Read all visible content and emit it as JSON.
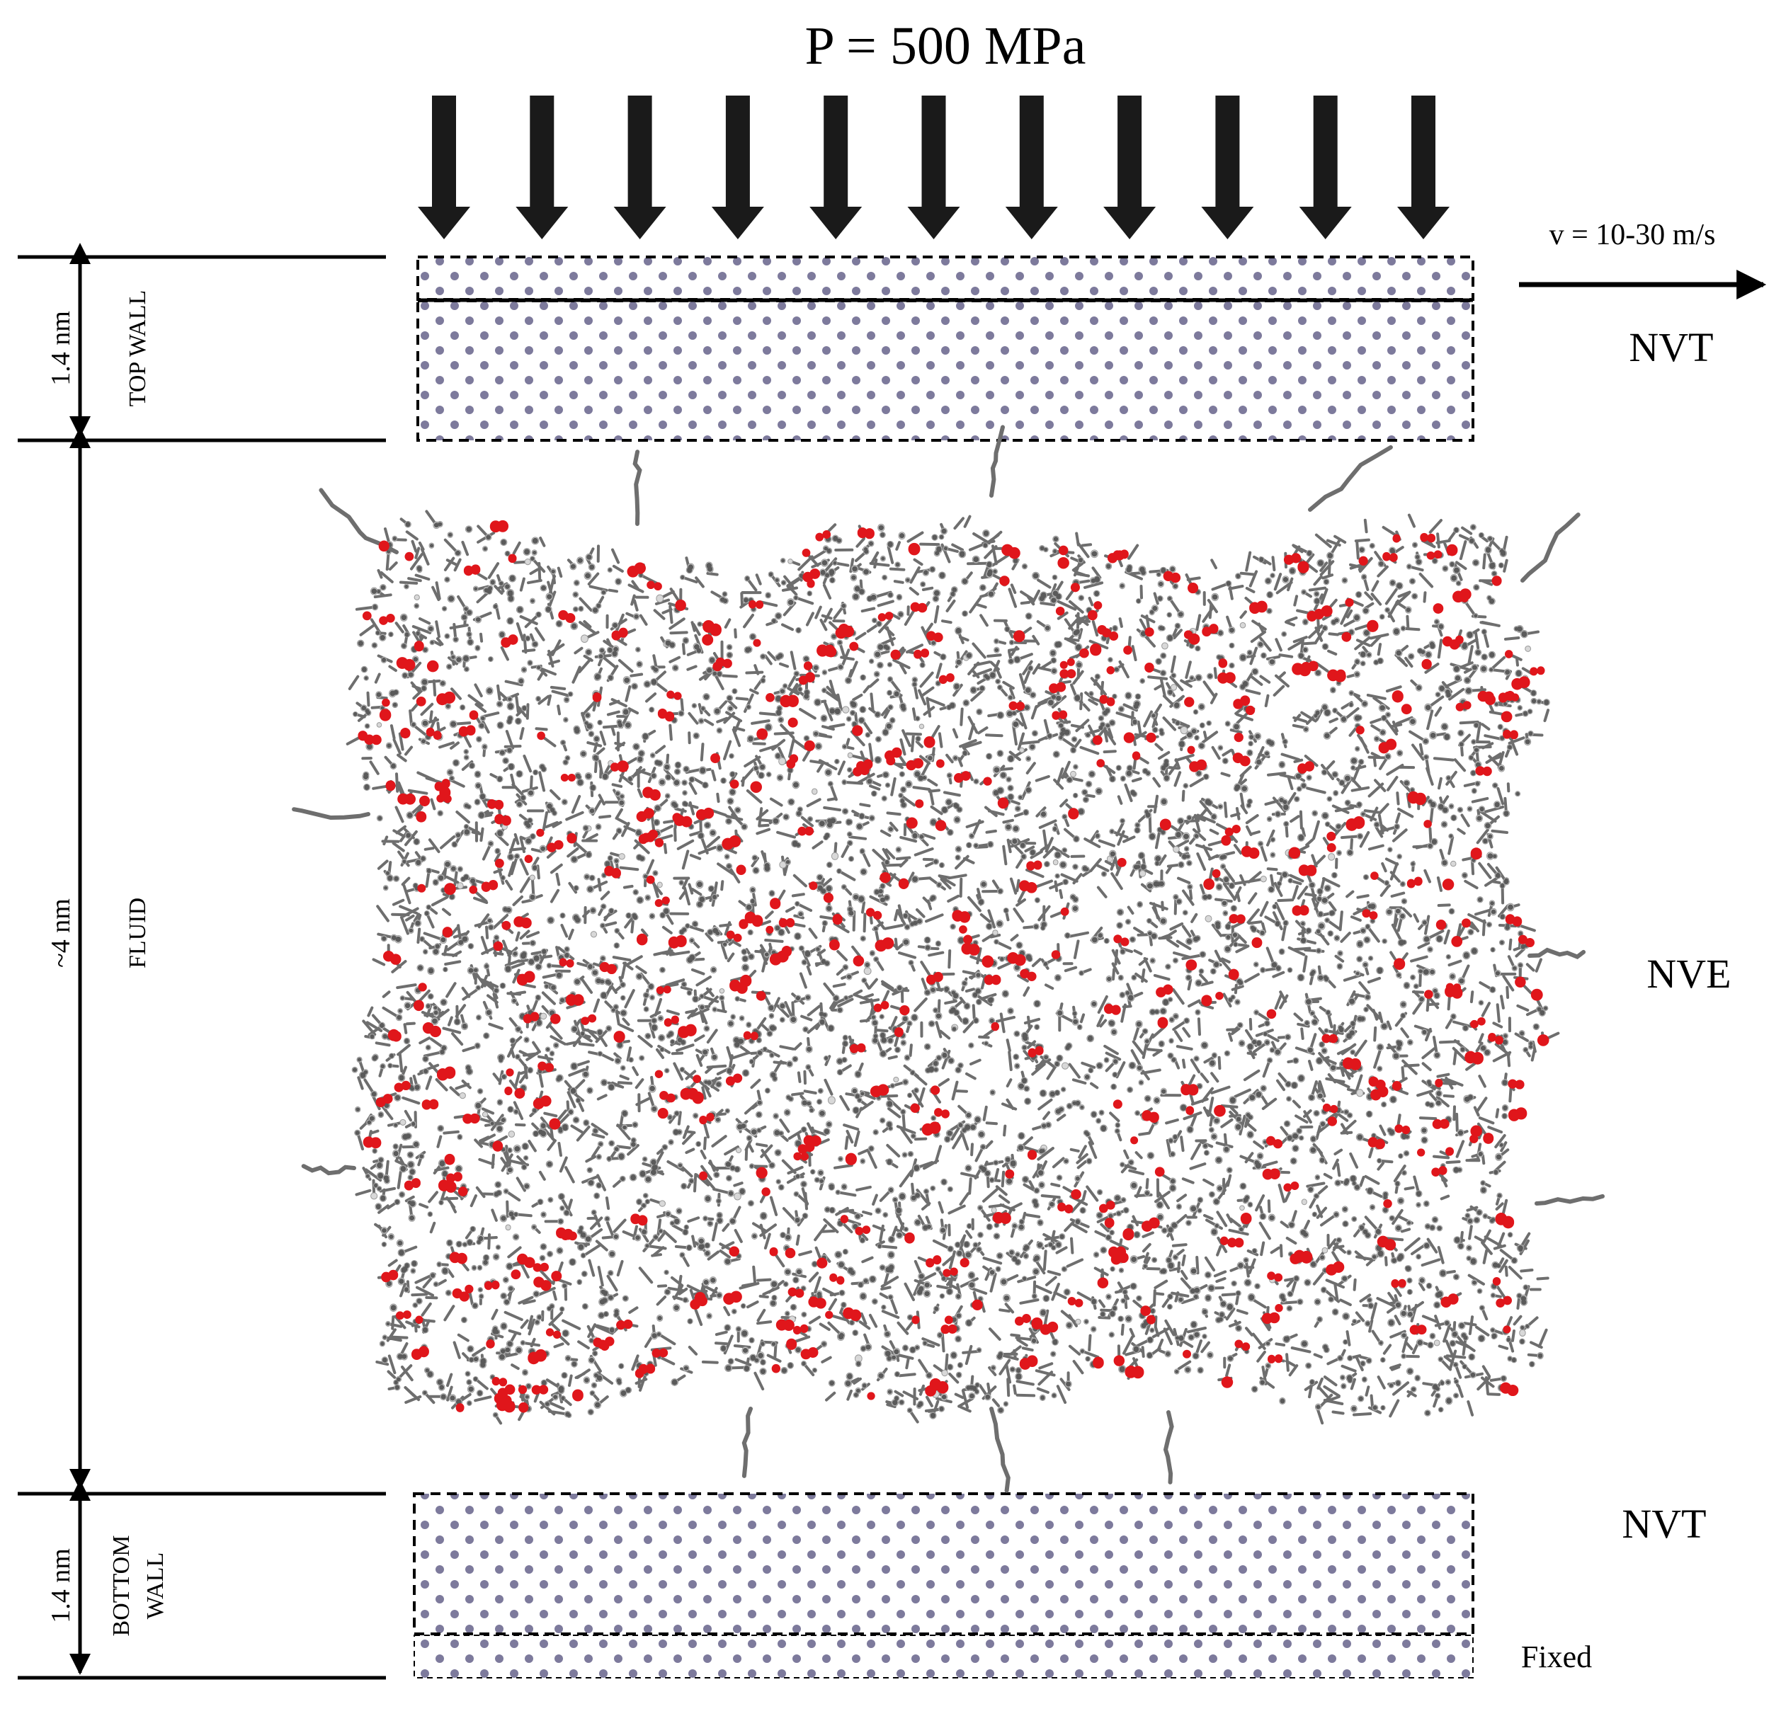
{
  "pressure_label": "P = 500 MPa",
  "velocity_label": "v = 10-30 m/s",
  "regions": {
    "top_wall": {
      "thickness": "1.4 nm",
      "name": "TOP WALL",
      "ensemble": "NVT"
    },
    "fluid": {
      "thickness": "~4 nm",
      "name": "FLUID",
      "ensemble": "NVE"
    },
    "bottom_wall": {
      "thickness": "1.4 nm",
      "name_line1": "BOTTOM",
      "name_line2": "WALL",
      "ensemble": "NVT",
      "fixed_label": "Fixed"
    }
  },
  "pressure_arrow_count": 11,
  "colors": {
    "wall_atom": "#7d7a9c",
    "fluid_carbon": "#6e6e6e",
    "fluid_hydrogen": "#d8d8d8",
    "fluid_oxygen": "#e0161b",
    "ink": "#000000"
  },
  "icons": {
    "pressure_arrows": "down-arrow-icon",
    "velocity_arrow": "right-arrow-icon",
    "thickness_markers": "double-arrow-icon"
  }
}
